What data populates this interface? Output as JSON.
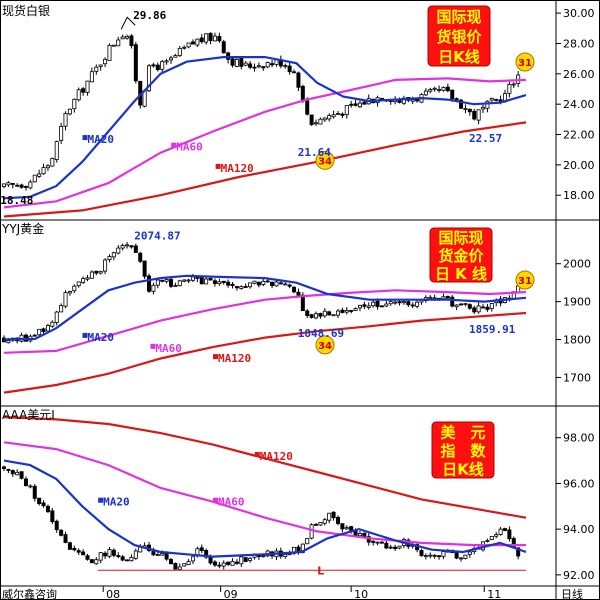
{
  "source": "威尔鑫咨询",
  "timeframe_label": "日线",
  "x_axis": {
    "ticks": [
      "08",
      "09",
      "10",
      "11"
    ]
  },
  "panels": [
    {
      "id": "silver",
      "name": "现货白银",
      "box_lines": [
        "国际现",
        "货银价",
        "日K线"
      ],
      "badge": "31",
      "ylim": [
        16.5,
        30.6
      ],
      "yticks": [
        "30.00",
        "28.00",
        "26.00",
        "24.00",
        "22.00",
        "20.00",
        "18.00"
      ],
      "ma_labels": {
        "ma20": "MA20",
        "ma60": "MA60",
        "ma120": "MA120"
      },
      "annotations": [
        {
          "text": "29.86",
          "x": 0.236,
          "y": 29.86
        },
        {
          "text": "21.64",
          "x": 0.582,
          "y": 21.64
        },
        {
          "text": "22.57",
          "x": 0.91,
          "y": 22.57
        },
        {
          "text": "18.48",
          "x": 0.012,
          "y": 18.48
        }
      ],
      "circle": {
        "text": "34",
        "x": 0.615,
        "y": 20.3
      }
    },
    {
      "id": "gold",
      "name": "YYJ黄金",
      "box_lines": [
        "国际现",
        "货金价",
        "日 K 线"
      ],
      "badge": "31",
      "ylim": [
        1630,
        2110
      ],
      "yticks": [
        "2000",
        "1900",
        "1800",
        "1700"
      ],
      "ma_labels": {
        "ma20": "MA20",
        "ma60": "MA60",
        "ma120": "MA120"
      },
      "annotations": [
        {
          "text": "2074.87",
          "x": 0.238,
          "y": 2074.87
        },
        {
          "text": "1848.69",
          "x": 0.582,
          "y": 1848.69
        },
        {
          "text": "1859.91",
          "x": 0.91,
          "y": 1859.91
        }
      ],
      "circle": {
        "text": "34",
        "x": 0.615,
        "y": 1786
      }
    },
    {
      "id": "usd",
      "name": "AAA美元I",
      "box_lines": [
        "美　元",
        "指　数",
        "日K线"
      ],
      "ylim": [
        91.6,
        99.3
      ],
      "yticks": [
        "98.00",
        "96.00",
        "94.00",
        "92.00"
      ],
      "ma_labels": {
        "ma20": "MA20",
        "ma60": "MA60",
        "ma120": "MA120"
      },
      "support_label": "L",
      "support_level": 92.2
    }
  ],
  "chart_data": [
    {
      "type": "candlestick",
      "title": "现货白银",
      "ylim": [
        16.5,
        30.6
      ],
      "x_ticks": [
        "08",
        "09",
        "10",
        "11"
      ],
      "x_tick_positions": [
        0.19,
        0.415,
        0.665,
        0.92
      ],
      "close_path": [
        [
          0.0,
          18.5
        ],
        [
          0.05,
          18.9
        ],
        [
          0.09,
          20.2
        ],
        [
          0.12,
          23.5
        ],
        [
          0.15,
          25.0
        ],
        [
          0.18,
          26.5
        ],
        [
          0.2,
          27.6
        ],
        [
          0.225,
          28.7
        ],
        [
          0.24,
          28.5
        ],
        [
          0.26,
          24.0
        ],
        [
          0.28,
          26.5
        ],
        [
          0.31,
          26.6
        ],
        [
          0.34,
          27.5
        ],
        [
          0.37,
          28.2
        ],
        [
          0.41,
          28.5
        ],
        [
          0.43,
          27.0
        ],
        [
          0.46,
          26.5
        ],
        [
          0.5,
          26.7
        ],
        [
          0.535,
          26.8
        ],
        [
          0.56,
          26.0
        ],
        [
          0.575,
          23.8
        ],
        [
          0.59,
          22.8
        ],
        [
          0.62,
          23.2
        ],
        [
          0.66,
          23.7
        ],
        [
          0.7,
          24.3
        ],
        [
          0.73,
          24.6
        ],
        [
          0.76,
          24.2
        ],
        [
          0.8,
          24.5
        ],
        [
          0.84,
          24.9
        ],
        [
          0.87,
          24.2
        ],
        [
          0.9,
          23.2
        ],
        [
          0.93,
          24.0
        ],
        [
          0.96,
          24.6
        ],
        [
          0.98,
          25.8
        ],
        [
          1.0,
          26.2
        ]
      ],
      "ma20": [
        [
          0.0,
          17.8
        ],
        [
          0.05,
          17.9
        ],
        [
          0.1,
          18.6
        ],
        [
          0.15,
          20.2
        ],
        [
          0.2,
          22.2
        ],
        [
          0.25,
          24.2
        ],
        [
          0.3,
          26.0
        ],
        [
          0.35,
          26.8
        ],
        [
          0.42,
          27.1
        ],
        [
          0.5,
          27.1
        ],
        [
          0.56,
          26.7
        ],
        [
          0.6,
          25.4
        ],
        [
          0.65,
          24.5
        ],
        [
          0.7,
          24.2
        ],
        [
          0.75,
          24.3
        ],
        [
          0.8,
          24.4
        ],
        [
          0.85,
          24.3
        ],
        [
          0.9,
          24.0
        ],
        [
          0.95,
          24.1
        ],
        [
          1.0,
          24.6
        ]
      ],
      "ma60": [
        [
          0.0,
          17.2
        ],
        [
          0.1,
          17.6
        ],
        [
          0.2,
          18.8
        ],
        [
          0.3,
          20.8
        ],
        [
          0.4,
          22.2
        ],
        [
          0.5,
          23.5
        ],
        [
          0.58,
          24.3
        ],
        [
          0.66,
          24.9
        ],
        [
          0.75,
          25.6
        ],
        [
          0.85,
          25.7
        ],
        [
          0.93,
          25.5
        ],
        [
          1.0,
          25.6
        ]
      ],
      "ma120": [
        [
          0.0,
          16.6
        ],
        [
          0.15,
          17.0
        ],
        [
          0.3,
          18.0
        ],
        [
          0.45,
          19.2
        ],
        [
          0.6,
          20.2
        ],
        [
          0.75,
          21.3
        ],
        [
          0.88,
          22.2
        ],
        [
          1.0,
          22.8
        ]
      ]
    },
    {
      "type": "candlestick",
      "title": "YYJ黄金",
      "ylim": [
        1630,
        2110
      ],
      "x_ticks": [
        "08",
        "09",
        "10",
        "11"
      ],
      "x_tick_positions": [
        0.19,
        0.415,
        0.665,
        0.92
      ],
      "close_path": [
        [
          0.0,
          1802
        ],
        [
          0.05,
          1805
        ],
        [
          0.09,
          1840
        ],
        [
          0.12,
          1930
        ],
        [
          0.15,
          1950
        ],
        [
          0.18,
          1980
        ],
        [
          0.2,
          2020
        ],
        [
          0.23,
          2055
        ],
        [
          0.25,
          2050
        ],
        [
          0.28,
          1925
        ],
        [
          0.3,
          1960
        ],
        [
          0.33,
          1945
        ],
        [
          0.36,
          1955
        ],
        [
          0.4,
          1955
        ],
        [
          0.43,
          1935
        ],
        [
          0.46,
          1940
        ],
        [
          0.5,
          1950
        ],
        [
          0.53,
          1945
        ],
        [
          0.56,
          1930
        ],
        [
          0.575,
          1875
        ],
        [
          0.59,
          1860
        ],
        [
          0.62,
          1870
        ],
        [
          0.66,
          1880
        ],
        [
          0.7,
          1890
        ],
        [
          0.73,
          1900
        ],
        [
          0.76,
          1890
        ],
        [
          0.8,
          1905
        ],
        [
          0.84,
          1905
        ],
        [
          0.87,
          1895
        ],
        [
          0.9,
          1875
        ],
        [
          0.93,
          1890
        ],
        [
          0.96,
          1905
        ],
        [
          0.98,
          1925
        ],
        [
          1.0,
          1950
        ]
      ],
      "ma20": [
        [
          0.0,
          1800
        ],
        [
          0.06,
          1802
        ],
        [
          0.1,
          1830
        ],
        [
          0.15,
          1880
        ],
        [
          0.2,
          1930
        ],
        [
          0.25,
          1950
        ],
        [
          0.3,
          1962
        ],
        [
          0.35,
          1968
        ],
        [
          0.42,
          1965
        ],
        [
          0.5,
          1962
        ],
        [
          0.56,
          1950
        ],
        [
          0.62,
          1920
        ],
        [
          0.7,
          1905
        ],
        [
          0.78,
          1905
        ],
        [
          0.85,
          1905
        ],
        [
          0.92,
          1900
        ],
        [
          1.0,
          1910
        ]
      ],
      "ma60": [
        [
          0.0,
          1765
        ],
        [
          0.1,
          1770
        ],
        [
          0.2,
          1810
        ],
        [
          0.3,
          1850
        ],
        [
          0.4,
          1880
        ],
        [
          0.5,
          1905
        ],
        [
          0.58,
          1915
        ],
        [
          0.66,
          1923
        ],
        [
          0.75,
          1930
        ],
        [
          0.85,
          1925
        ],
        [
          0.93,
          1920
        ],
        [
          1.0,
          1925
        ]
      ],
      "ma120": [
        [
          0.0,
          1660
        ],
        [
          0.1,
          1680
        ],
        [
          0.2,
          1710
        ],
        [
          0.3,
          1750
        ],
        [
          0.4,
          1780
        ],
        [
          0.5,
          1805
        ],
        [
          0.6,
          1822
        ],
        [
          0.7,
          1835
        ],
        [
          0.8,
          1850
        ],
        [
          0.9,
          1860
        ],
        [
          1.0,
          1870
        ]
      ]
    },
    {
      "type": "candlestick",
      "title": "AAA美元I",
      "ylim": [
        91.6,
        99.3
      ],
      "x_ticks": [
        "08",
        "09",
        "10",
        "11"
      ],
      "x_tick_positions": [
        0.19,
        0.415,
        0.665,
        0.92
      ],
      "close_path": [
        [
          0.0,
          96.7
        ],
        [
          0.04,
          96.1
        ],
        [
          0.08,
          94.8
        ],
        [
          0.12,
          93.4
        ],
        [
          0.16,
          92.6
        ],
        [
          0.2,
          93.0
        ],
        [
          0.23,
          92.6
        ],
        [
          0.27,
          93.2
        ],
        [
          0.31,
          92.7
        ],
        [
          0.34,
          92.2
        ],
        [
          0.37,
          93.0
        ],
        [
          0.42,
          92.4
        ],
        [
          0.45,
          92.7
        ],
        [
          0.5,
          92.9
        ],
        [
          0.55,
          93.0
        ],
        [
          0.57,
          93.2
        ],
        [
          0.59,
          94.2
        ],
        [
          0.62,
          94.6
        ],
        [
          0.65,
          94.0
        ],
        [
          0.69,
          93.6
        ],
        [
          0.73,
          93.2
        ],
        [
          0.77,
          93.4
        ],
        [
          0.81,
          92.8
        ],
        [
          0.85,
          92.9
        ],
        [
          0.89,
          92.9
        ],
        [
          0.92,
          93.5
        ],
        [
          0.95,
          94.0
        ],
        [
          0.97,
          93.6
        ],
        [
          0.99,
          92.6
        ],
        [
          1.0,
          92.3
        ]
      ],
      "ma20": [
        [
          0.0,
          97.0
        ],
        [
          0.05,
          96.8
        ],
        [
          0.1,
          96.2
        ],
        [
          0.15,
          95.0
        ],
        [
          0.2,
          94.0
        ],
        [
          0.25,
          93.3
        ],
        [
          0.3,
          93.0
        ],
        [
          0.35,
          92.9
        ],
        [
          0.4,
          92.8
        ],
        [
          0.5,
          92.9
        ],
        [
          0.57,
          93.0
        ],
        [
          0.62,
          93.6
        ],
        [
          0.68,
          94.0
        ],
        [
          0.75,
          93.5
        ],
        [
          0.82,
          93.1
        ],
        [
          0.88,
          93.0
        ],
        [
          0.95,
          93.4
        ],
        [
          1.0,
          93.0
        ]
      ],
      "ma60": [
        [
          0.0,
          97.8
        ],
        [
          0.1,
          97.5
        ],
        [
          0.2,
          96.8
        ],
        [
          0.3,
          95.8
        ],
        [
          0.4,
          95.2
        ],
        [
          0.5,
          94.5
        ],
        [
          0.6,
          93.9
        ],
        [
          0.7,
          93.6
        ],
        [
          0.8,
          93.4
        ],
        [
          0.9,
          93.3
        ],
        [
          1.0,
          93.3
        ]
      ],
      "ma120": [
        [
          0.0,
          98.9
        ],
        [
          0.1,
          98.8
        ],
        [
          0.2,
          98.6
        ],
        [
          0.3,
          98.2
        ],
        [
          0.4,
          97.7
        ],
        [
          0.5,
          97.1
        ],
        [
          0.6,
          96.5
        ],
        [
          0.7,
          95.9
        ],
        [
          0.8,
          95.3
        ],
        [
          0.9,
          94.9
        ],
        [
          1.0,
          94.5
        ]
      ]
    }
  ]
}
